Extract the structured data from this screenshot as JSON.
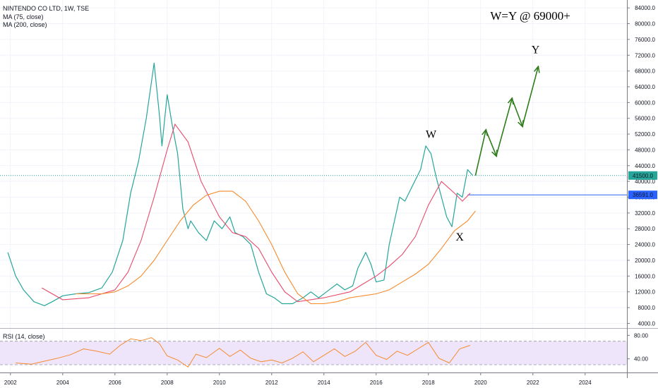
{
  "chart_data": {
    "type": "line",
    "title": "NINTENDO CO LTD, 1W, TSE",
    "legend": [
      "MA (75, close)",
      "MA (200, close)"
    ],
    "x_ticks": [
      "2002",
      "2004",
      "2006",
      "2008",
      "2010",
      "2012",
      "2014",
      "2016",
      "2018",
      "2020",
      "2022",
      "2024"
    ],
    "x_range": [
      2001.6,
      2025.6
    ],
    "ylim": [
      3000,
      86000
    ],
    "y_ticks": [
      "84000.0",
      "80000.0",
      "76000.0",
      "72000.0",
      "68000.0",
      "64000.0",
      "60000.0",
      "56000.0",
      "52000.0",
      "48000.0",
      "44000.0",
      "40000.0",
      "36000.0",
      "32000.0",
      "28000.0",
      "24000.0",
      "20000.0",
      "16000.0",
      "12000.0",
      "8000.0",
      "4000.0"
    ],
    "price_series": {
      "name": "price",
      "color": "#26a69a",
      "x": [
        2001.9,
        2002.2,
        2002.5,
        2002.9,
        2003.3,
        2003.6,
        2004.0,
        2004.5,
        2005.0,
        2005.5,
        2005.9,
        2006.3,
        2006.6,
        2006.9,
        2007.2,
        2007.5,
        2007.7,
        2007.8,
        2008.0,
        2008.2,
        2008.4,
        2008.6,
        2008.8,
        2008.9,
        2009.2,
        2009.5,
        2009.8,
        2010.1,
        2010.4,
        2010.6,
        2010.9,
        2011.2,
        2011.5,
        2011.8,
        2012.1,
        2012.4,
        2012.8,
        2013.2,
        2013.5,
        2013.8,
        2014.1,
        2014.5,
        2014.8,
        2015.1,
        2015.3,
        2015.6,
        2015.8,
        2016.0,
        2016.3,
        2016.5,
        2016.7,
        2016.9,
        2017.1,
        2017.4,
        2017.7,
        2017.9,
        2018.1,
        2018.3,
        2018.5,
        2018.7,
        2018.9,
        2019.1,
        2019.3,
        2019.5,
        2019.7
      ],
      "values": [
        22000,
        16000,
        12500,
        9500,
        8500,
        9500,
        11000,
        11500,
        11800,
        13000,
        17000,
        25000,
        37000,
        45000,
        56000,
        70000,
        57000,
        49000,
        62000,
        54000,
        47000,
        33000,
        28000,
        30000,
        27000,
        25000,
        30000,
        28000,
        31000,
        27000,
        26000,
        24000,
        17000,
        11500,
        10500,
        9000,
        9000,
        10500,
        12000,
        10500,
        12000,
        14000,
        12500,
        13500,
        18000,
        22000,
        19000,
        14500,
        15000,
        24000,
        30000,
        36000,
        35000,
        39000,
        43000,
        49000,
        47000,
        41000,
        36000,
        31000,
        28500,
        37000,
        36000,
        43000,
        41500
      ]
    },
    "series": [
      {
        "name": "MA (75, close)",
        "color": "#e84a6b",
        "x": [
          2003.2,
          2004.0,
          2005.0,
          2006.0,
          2006.5,
          2007.0,
          2007.5,
          2008.0,
          2008.3,
          2008.8,
          2009.3,
          2010.0,
          2010.5,
          2011.0,
          2011.5,
          2012.0,
          2012.5,
          2013.0,
          2014.0,
          2015.0,
          2015.5,
          2016.0,
          2016.5,
          2017.0,
          2017.5,
          2018.0,
          2018.5,
          2019.0,
          2019.3,
          2019.6
        ],
        "values": [
          13000,
          10000,
          10500,
          12500,
          17000,
          25000,
          36000,
          48000,
          54500,
          50000,
          40000,
          31000,
          27000,
          26000,
          23000,
          17000,
          12000,
          9500,
          10500,
          12000,
          14000,
          16000,
          18500,
          21500,
          26000,
          34000,
          40000,
          37000,
          35000,
          37000
        ]
      },
      {
        "name": "MA (200, close)",
        "color": "#f68a2d",
        "x": [
          2004.5,
          2005.5,
          2006.0,
          2006.5,
          2007.0,
          2007.5,
          2008.0,
          2008.5,
          2009.0,
          2009.5,
          2010.0,
          2010.5,
          2011.0,
          2011.5,
          2012.0,
          2012.5,
          2013.0,
          2013.5,
          2014.0,
          2014.5,
          2015.0,
          2015.5,
          2016.0,
          2016.5,
          2017.0,
          2017.5,
          2018.0,
          2018.5,
          2019.0,
          2019.5,
          2019.8
        ],
        "values": [
          11500,
          11500,
          12000,
          13500,
          16000,
          20000,
          25000,
          30000,
          34000,
          36500,
          37500,
          37500,
          35000,
          30000,
          24000,
          17000,
          11500,
          9000,
          9000,
          9500,
          10500,
          11000,
          11500,
          12500,
          14500,
          16500,
          19000,
          23000,
          27500,
          30000,
          32500
        ]
      }
    ],
    "projection": {
      "color": "#2e7d1a",
      "x": [
        2019.8,
        2020.2,
        2020.6,
        2021.2,
        2021.6,
        2022.2
      ],
      "values": [
        41500,
        53000,
        46500,
        61000,
        54000,
        69000
      ]
    },
    "horizontal_lines": [
      {
        "value": 41500,
        "color": "#26a69a",
        "label": "41500.0"
      },
      {
        "value": 36591,
        "color": "#2962ff",
        "label": "36591.0",
        "start_x": 2019.5
      }
    ],
    "annotations": {
      "wave_w": {
        "text": "W",
        "x": 2018.1,
        "y": 51000
      },
      "wave_x": {
        "text": "X",
        "x": 2019.2,
        "y": 25000
      },
      "wave_y": {
        "text": "Y",
        "x": 2022.1,
        "y": 72500
      },
      "target": {
        "text": "W=Y @ 69000+",
        "x": 2021.9,
        "y": 81000
      }
    },
    "rsi": {
      "label": "RSI (14, close)",
      "ylim": [
        18,
        90
      ],
      "y_ticks": [
        "80.00",
        "40.00"
      ],
      "band": [
        30,
        70
      ],
      "color": "#f68a2d",
      "band_fill": "#efe5fb",
      "x": [
        2002.2,
        2002.8,
        2003.3,
        2003.8,
        2004.3,
        2004.8,
        2005.3,
        2005.8,
        2006.2,
        2006.6,
        2007.0,
        2007.4,
        2007.7,
        2008.0,
        2008.4,
        2008.8,
        2009.1,
        2009.5,
        2010.0,
        2010.4,
        2010.8,
        2011.2,
        2011.6,
        2012.0,
        2012.4,
        2012.8,
        2013.2,
        2013.6,
        2014.0,
        2014.4,
        2014.8,
        2015.2,
        2015.6,
        2016.0,
        2016.4,
        2016.8,
        2017.2,
        2017.6,
        2018.0,
        2018.4,
        2018.8,
        2019.2,
        2019.6
      ],
      "values": [
        33,
        31,
        36,
        41,
        47,
        57,
        53,
        48,
        63,
        74,
        71,
        76,
        66,
        45,
        38,
        26,
        48,
        42,
        58,
        44,
        55,
        41,
        35,
        38,
        33,
        41,
        52,
        35,
        46,
        57,
        44,
        53,
        68,
        46,
        39,
        53,
        46,
        57,
        68,
        41,
        33,
        57,
        63
      ]
    }
  }
}
